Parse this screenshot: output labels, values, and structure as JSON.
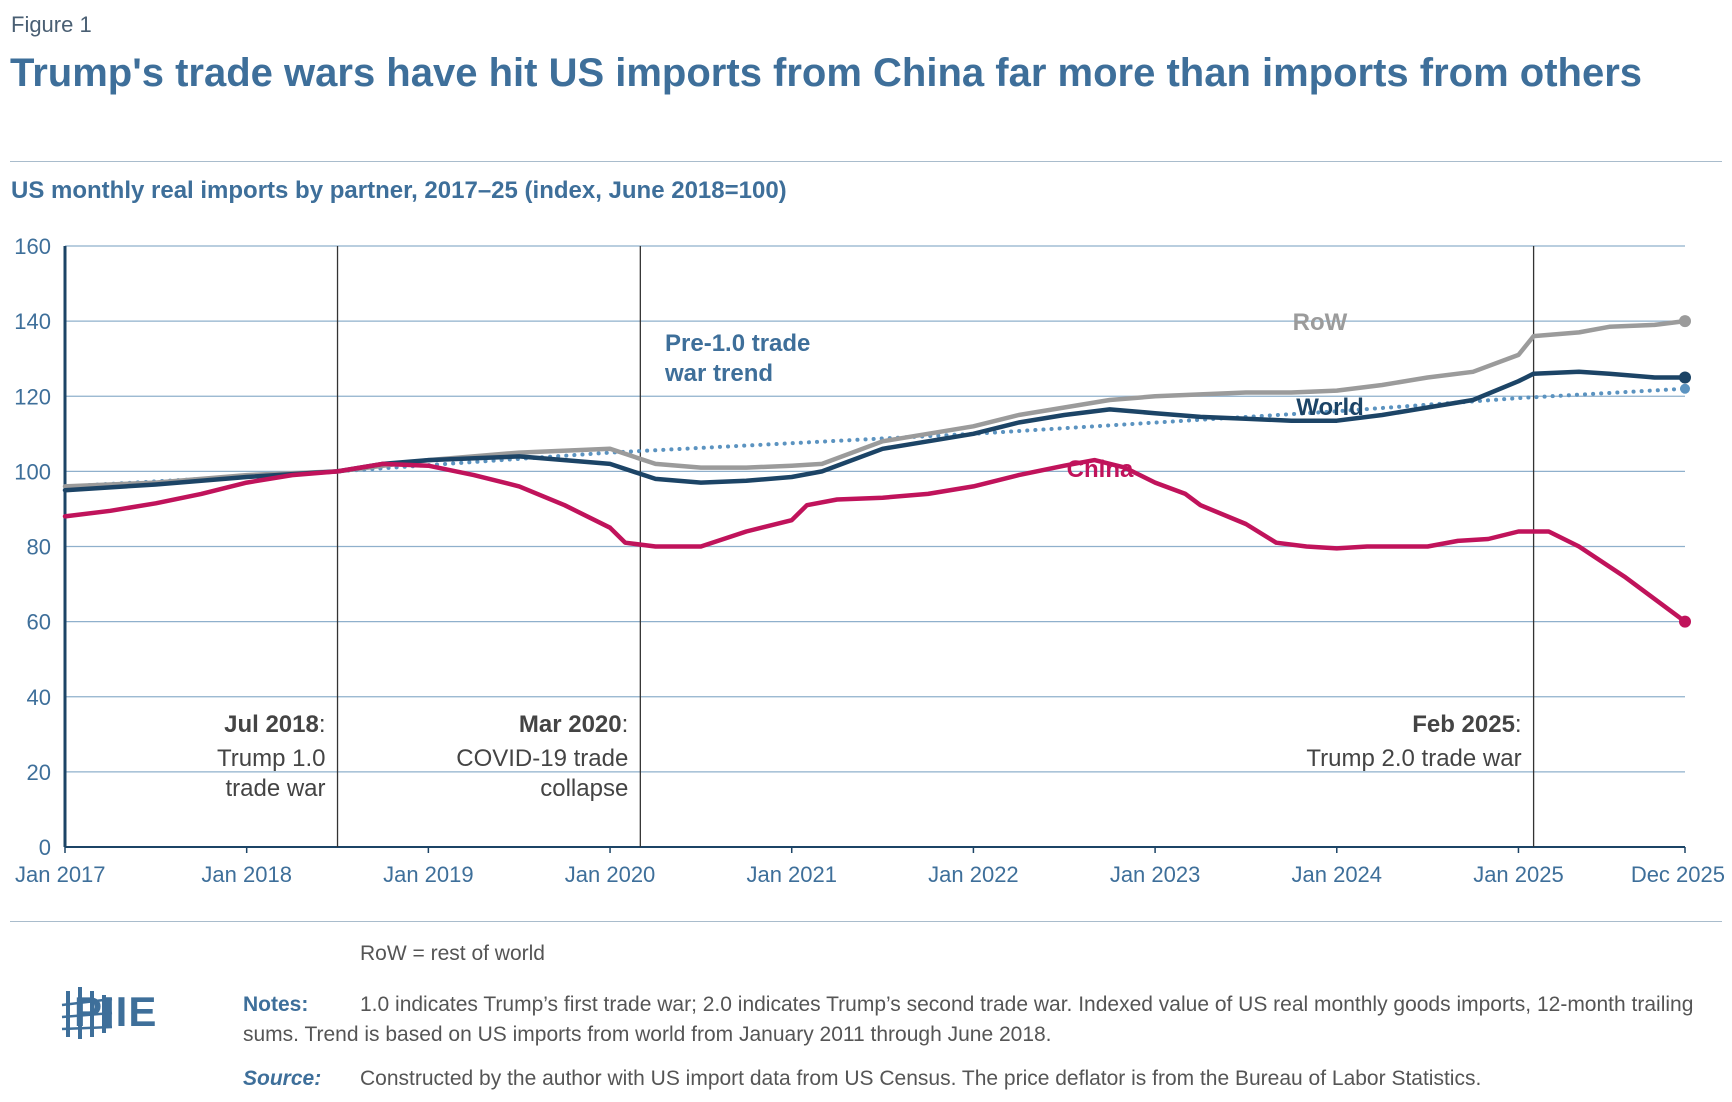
{
  "figure_label": "Figure 1",
  "title": "Trump's trade wars have hit US imports from China far more than imports from others",
  "subtitle": "US monthly real imports by partner, 2017–25 (index, June 2018=100)",
  "legend_note": "RoW = rest of world",
  "logo_text": "PIIE",
  "notes": {
    "label": "Notes:",
    "text": "1.0 indicates Trump’s first trade war; 2.0 indicates Trump’s second trade war. Indexed value of US real monthly goods imports, 12-month trailing sums. Trend is based on US imports from world from January 2011 through June 2018."
  },
  "source": {
    "label": "Source:",
    "text": "Constructed by the author with US import data from US Census. The price deflator is from the Bureau of Labor Statistics."
  },
  "colors": {
    "china": "#c0135b",
    "world": "#1c4466",
    "row": "#9b9b9b",
    "trend": "#5b93c0",
    "axis_text": "#3e6f9a",
    "grid": "#8fb0cc"
  },
  "chart_data": {
    "type": "line",
    "title": "US monthly real imports by partner, 2017–25 (index, June 2018=100)",
    "xlabel": "",
    "ylabel": "",
    "ylim": [
      0,
      160
    ],
    "yticks": [
      0,
      20,
      40,
      60,
      80,
      100,
      120,
      140,
      160
    ],
    "x_start": "Jan 2017",
    "x_end": "Dec 2025",
    "xticks": [
      {
        "label": "Jan 2017",
        "month": 0
      },
      {
        "label": "Jan 2018",
        "month": 12
      },
      {
        "label": "Jan 2019",
        "month": 24
      },
      {
        "label": "Jan 2020",
        "month": 36
      },
      {
        "label": "Jan 2021",
        "month": 48
      },
      {
        "label": "Jan 2022",
        "month": 60
      },
      {
        "label": "Jan 2023",
        "month": 72
      },
      {
        "label": "Jan 2024",
        "month": 84
      },
      {
        "label": "Jan 2025",
        "month": 96
      },
      {
        "label": "Dec 2025",
        "month": 107
      }
    ],
    "series": [
      {
        "name": "RoW",
        "key": "row",
        "points": [
          [
            0,
            96
          ],
          [
            6,
            97
          ],
          [
            12,
            99
          ],
          [
            18,
            100
          ],
          [
            24,
            103
          ],
          [
            30,
            105
          ],
          [
            36,
            106
          ],
          [
            39,
            102
          ],
          [
            42,
            101
          ],
          [
            45,
            101
          ],
          [
            48,
            101.5
          ],
          [
            50,
            102
          ],
          [
            54,
            108
          ],
          [
            57,
            110
          ],
          [
            60,
            112
          ],
          [
            63,
            115
          ],
          [
            66,
            117
          ],
          [
            69,
            119
          ],
          [
            72,
            120
          ],
          [
            75,
            120.5
          ],
          [
            78,
            121
          ],
          [
            81,
            121
          ],
          [
            84,
            121.5
          ],
          [
            87,
            123
          ],
          [
            90,
            125
          ],
          [
            93,
            126.5
          ],
          [
            96,
            131
          ],
          [
            97,
            136
          ],
          [
            100,
            137
          ],
          [
            102,
            138.5
          ],
          [
            105,
            139
          ],
          [
            107,
            140
          ]
        ],
        "end_marker": true
      },
      {
        "name": "World",
        "key": "world",
        "points": [
          [
            0,
            95
          ],
          [
            6,
            96.5
          ],
          [
            12,
            98.5
          ],
          [
            18,
            100
          ],
          [
            21,
            102
          ],
          [
            24,
            103
          ],
          [
            30,
            104
          ],
          [
            36,
            102
          ],
          [
            39,
            98
          ],
          [
            42,
            97
          ],
          [
            45,
            97.5
          ],
          [
            48,
            98.5
          ],
          [
            50,
            100
          ],
          [
            54,
            106
          ],
          [
            57,
            108
          ],
          [
            60,
            110
          ],
          [
            63,
            113
          ],
          [
            66,
            115
          ],
          [
            69,
            116.5
          ],
          [
            72,
            115.5
          ],
          [
            75,
            114.5
          ],
          [
            78,
            114
          ],
          [
            81,
            113.5
          ],
          [
            84,
            113.5
          ],
          [
            87,
            115
          ],
          [
            90,
            117
          ],
          [
            93,
            119
          ],
          [
            96,
            124
          ],
          [
            97,
            126
          ],
          [
            100,
            126.5
          ],
          [
            102,
            126
          ],
          [
            105,
            125
          ],
          [
            107,
            125
          ]
        ],
        "end_marker": true
      },
      {
        "name": "China",
        "key": "china",
        "points": [
          [
            0,
            88
          ],
          [
            3,
            89.5
          ],
          [
            6,
            91.5
          ],
          [
            9,
            94
          ],
          [
            12,
            97
          ],
          [
            15,
            99
          ],
          [
            18,
            100
          ],
          [
            21,
            102
          ],
          [
            24,
            101.5
          ],
          [
            27,
            99
          ],
          [
            30,
            96
          ],
          [
            33,
            91
          ],
          [
            36,
            85
          ],
          [
            37,
            81
          ],
          [
            39,
            80
          ],
          [
            42,
            80
          ],
          [
            45,
            84
          ],
          [
            48,
            87
          ],
          [
            49,
            91
          ],
          [
            51,
            92.5
          ],
          [
            54,
            93
          ],
          [
            57,
            94
          ],
          [
            60,
            96
          ],
          [
            63,
            99
          ],
          [
            66,
            101.5
          ],
          [
            68,
            103
          ],
          [
            70,
            101
          ],
          [
            72,
            97
          ],
          [
            74,
            94
          ],
          [
            75,
            91
          ],
          [
            78,
            86
          ],
          [
            80,
            81
          ],
          [
            82,
            80
          ],
          [
            84,
            79.5
          ],
          [
            86,
            80
          ],
          [
            90,
            80
          ],
          [
            92,
            81.5
          ],
          [
            94,
            82
          ],
          [
            96,
            84
          ],
          [
            98,
            84
          ],
          [
            100,
            80
          ],
          [
            103,
            72
          ],
          [
            105,
            66
          ],
          [
            107,
            60
          ]
        ],
        "end_marker": true
      },
      {
        "name": "Pre-1.0 trade war trend",
        "key": "trend",
        "dotted": true,
        "points": [
          [
            0,
            96
          ],
          [
            18,
            100
          ],
          [
            36,
            105
          ],
          [
            60,
            110
          ],
          [
            84,
            116
          ],
          [
            96,
            119.5
          ],
          [
            107,
            122
          ]
        ],
        "end_marker": true
      }
    ],
    "series_labels": [
      {
        "key": "row",
        "text": "RoW"
      },
      {
        "key": "world",
        "text": "World"
      },
      {
        "key": "china",
        "text": "China"
      }
    ],
    "trend_label": [
      "Pre-1.0 trade",
      "war trend"
    ],
    "events": [
      {
        "month": 18,
        "bold": "Jul 2018",
        "lines": [
          "Trump 1.0",
          "trade war"
        ]
      },
      {
        "month": 38,
        "bold": "Mar 2020",
        "lines": [
          "COVID-19 trade",
          "collapse"
        ]
      },
      {
        "month": 97,
        "bold": "Feb 2025",
        "lines": [
          "Trump 2.0 trade war"
        ]
      }
    ]
  }
}
